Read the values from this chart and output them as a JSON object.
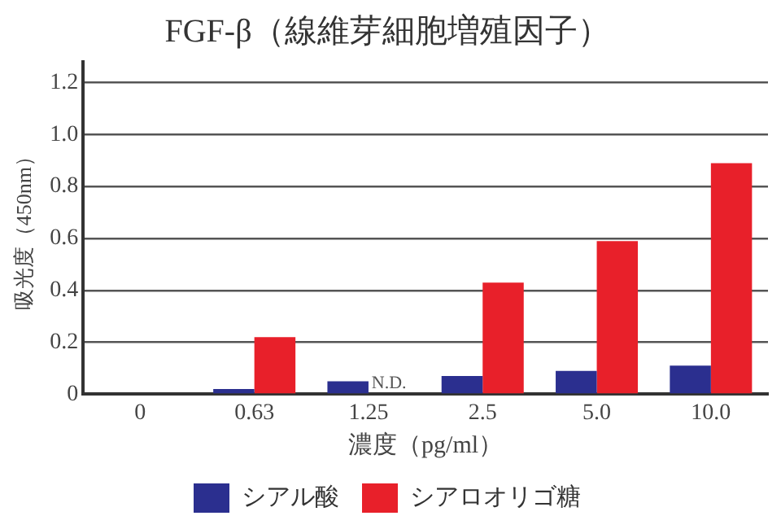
{
  "chart_data": {
    "type": "bar",
    "title": "FGF-β（線維芽細胞増殖因子）",
    "xlabel": "濃度（pg/ml）",
    "ylabel": "吸光度（450nm）",
    "categories": [
      "0",
      "0.63",
      "1.25",
      "2.5",
      "5.0",
      "10.0"
    ],
    "series": [
      {
        "name": "シアル酸",
        "color": "#2b2f8f",
        "values": [
          0,
          0.02,
          0.05,
          0.07,
          0.09,
          0.11
        ]
      },
      {
        "name": "シアロオリゴ糖",
        "color": "#e8202a",
        "values": [
          0,
          0.22,
          null,
          0.43,
          0.59,
          0.89
        ]
      }
    ],
    "annotations": [
      {
        "text": "N.D.",
        "x": "1.25",
        "y": 0
      }
    ],
    "ylim": [
      0,
      1.28
    ],
    "yticks": [
      0,
      0.2,
      0.4,
      0.6,
      0.8,
      {
        "value": 1,
        "label": "1.0"
      },
      1.2
    ],
    "grid": "y",
    "legend": "bottom"
  }
}
